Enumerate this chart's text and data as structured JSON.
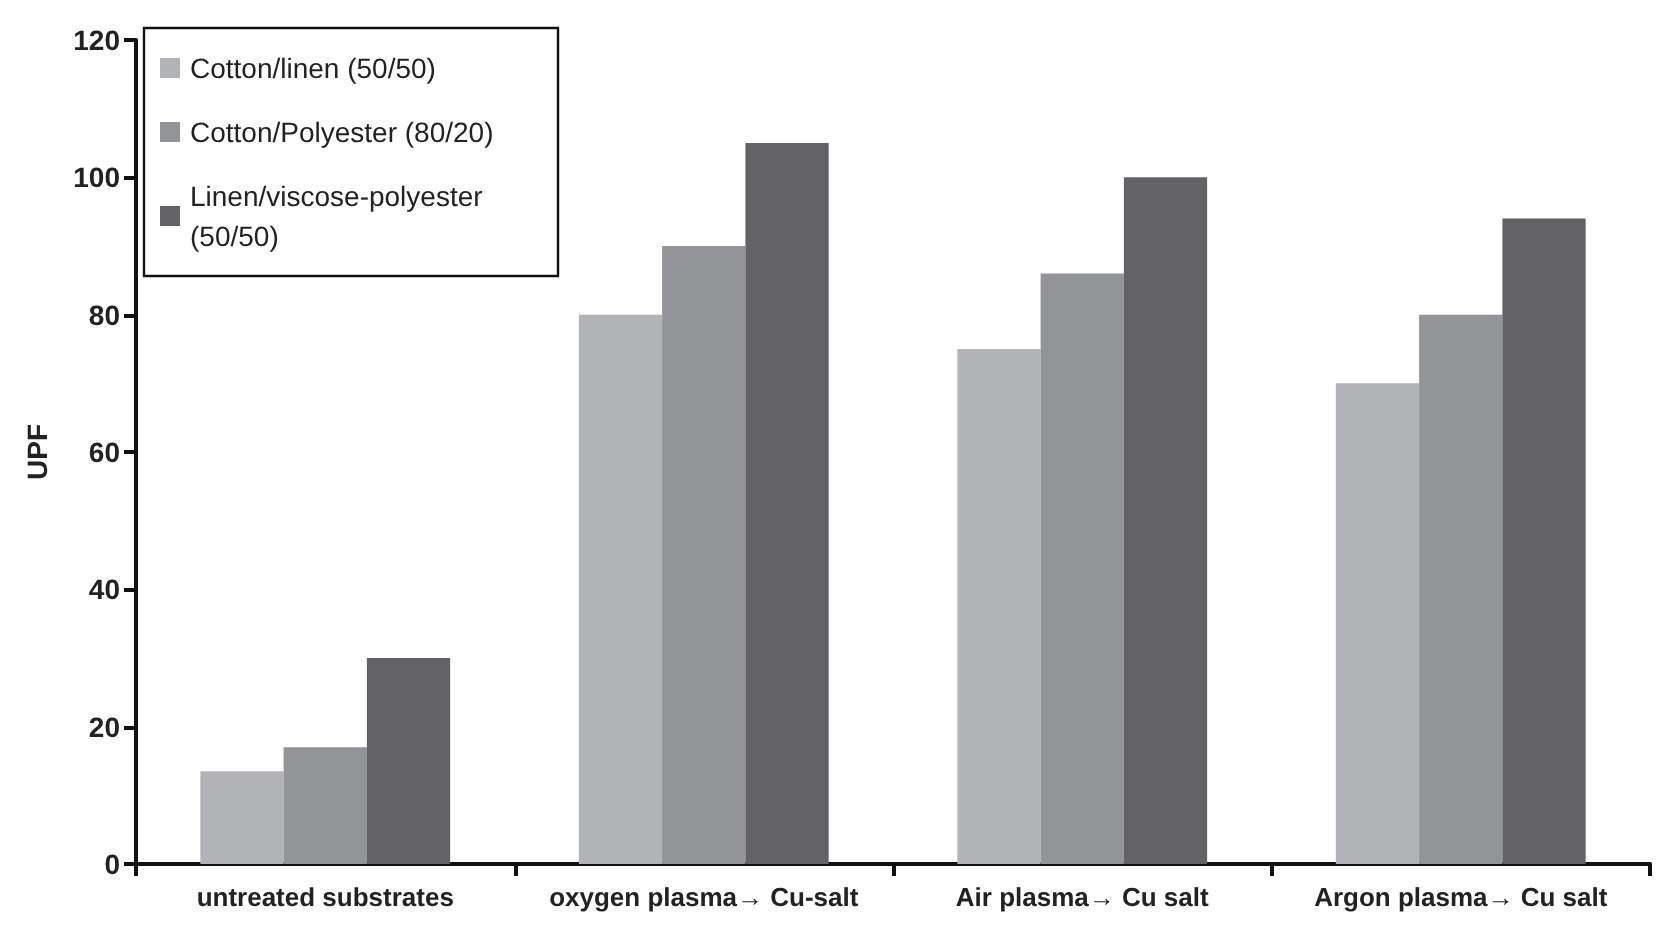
{
  "chart_data": {
    "type": "bar",
    "ylabel": "UPF",
    "categories": [
      "untreated substrates",
      "oxygen plasma→ Cu-salt",
      "Air plasma→ Cu salt",
      "Argon plasma→ Cu salt"
    ],
    "series": [
      {
        "name": "Cotton/linen (50/50)",
        "color": "#b2b3b7",
        "values": [
          13.5,
          80,
          75,
          70
        ]
      },
      {
        "name": "Cotton/Polyester (80/20)",
        "color": "#939498",
        "values": [
          17,
          90,
          86,
          80
        ]
      },
      {
        "name": "Linen/viscose-polyester (50/50)",
        "color": "#636365",
        "values": [
          30,
          105,
          100,
          94
        ]
      }
    ],
    "ylim": [
      0,
      120
    ],
    "yticks": [
      0,
      20,
      40,
      60,
      80,
      100,
      120
    ],
    "grid": false,
    "legend": "top left"
  }
}
